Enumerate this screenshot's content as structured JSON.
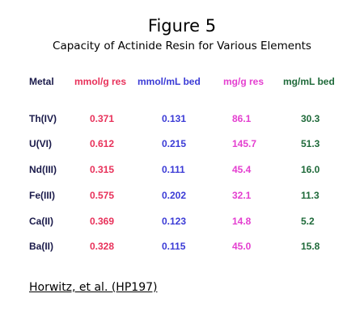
{
  "figure": {
    "title": "Figure 5",
    "subtitle": "Capacity of Actinide Resin for Various Elements"
  },
  "colors": {
    "metal": "#1a1a4a",
    "mmol_g": "#e8315a",
    "mmol_ml": "#3b3bd6",
    "mg_g": "#e43fd0",
    "mg_ml": "#1f6a3a"
  },
  "table": {
    "headers": [
      "Metal",
      "mmol/g res",
      "mmol/mL bed",
      "mg/g res",
      "mg/mL bed"
    ],
    "rows": [
      [
        "Th(IV)",
        "0.371",
        "0.131",
        "86.1",
        "30.3"
      ],
      [
        "U(VI)",
        "0.612",
        "0.215",
        "145.7",
        "51.3"
      ],
      [
        "Nd(III)",
        "0.315",
        "0.111",
        "45.4",
        "16.0"
      ],
      [
        "Fe(III)",
        "0.575",
        "0.202",
        "32.1",
        "11.3"
      ],
      [
        "Ca(II)",
        "0.369",
        "0.123",
        "14.8",
        "5.2"
      ],
      [
        "Ba(II)",
        "0.328",
        "0.115",
        "45.0",
        "15.8"
      ]
    ]
  },
  "footer": {
    "citation": "Horwitz, et al. (HP197)"
  }
}
